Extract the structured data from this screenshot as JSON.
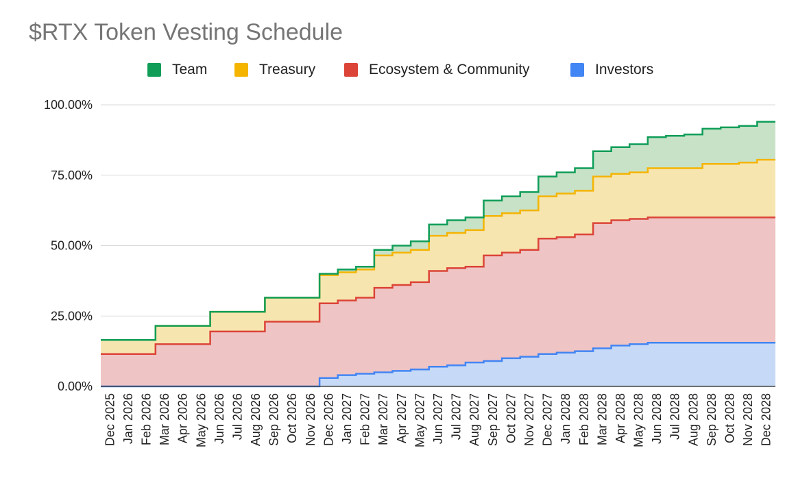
{
  "chart_data": {
    "type": "area",
    "stacked": true,
    "step": true,
    "title": "$RTX Token Vesting Schedule",
    "xlabel": "",
    "ylabel": "",
    "ylim": [
      0,
      100
    ],
    "yticks": [
      0,
      25,
      50,
      75,
      100
    ],
    "ytick_labels": [
      "0.00%",
      "25.00%",
      "50.00%",
      "75.00%",
      "100.00%"
    ],
    "grid": true,
    "legend_position": "top",
    "categories": [
      "Dec 2025",
      "Jan 2026",
      "Feb 2026",
      "Mar 2026",
      "Apr 2026",
      "May 2026",
      "Jun 2026",
      "Jul 2026",
      "Aug 2026",
      "Sep 2026",
      "Oct 2026",
      "Nov 2026",
      "Dec 2026",
      "Jan 2027",
      "Feb 2027",
      "Mar 2027",
      "Apr 2027",
      "May 2027",
      "Jun 2027",
      "Jul 2027",
      "Aug 2027",
      "Sep 2027",
      "Oct 2027",
      "Nov 2027",
      "Dec 2027",
      "Jan 2028",
      "Feb 2028",
      "Mar 2028",
      "Apr 2028",
      "May 2028",
      "Jun 2028",
      "Jul 2028",
      "Aug 2028",
      "Sep 2028",
      "Oct 2028",
      "Nov 2028",
      "Dec 2028"
    ],
    "series": [
      {
        "name": "Investors",
        "color": "#4285f4",
        "fill": "#c6d9f6",
        "values": [
          0,
          0,
          0,
          0,
          0,
          0,
          0,
          0,
          0,
          0,
          0,
          0,
          3,
          4,
          4.5,
          5,
          5.5,
          6,
          7,
          7.5,
          8.5,
          9,
          10,
          10.5,
          11.5,
          12,
          12.5,
          13.5,
          14.5,
          15,
          15.5,
          15.5,
          15.5,
          15.5,
          15.5,
          15.5,
          15.5
        ]
      },
      {
        "name": "Ecosystem & Community",
        "color": "#db4437",
        "fill": "#efc4c4",
        "values": [
          11.5,
          11.5,
          11.5,
          15,
          15,
          15,
          19.5,
          19.5,
          19.5,
          23,
          23,
          23,
          29.5,
          30.5,
          31.5,
          35,
          36,
          37,
          41,
          42,
          42.5,
          46.5,
          47.5,
          48.5,
          52.5,
          53,
          54,
          58,
          59,
          59.5,
          60,
          60,
          60,
          60,
          60,
          60,
          60
        ]
      },
      {
        "name": "Treasury",
        "color": "#f4b400",
        "fill": "#f7e5b0",
        "values": [
          16.5,
          16.5,
          16.5,
          21.5,
          21.5,
          21.5,
          26.5,
          26.5,
          26.5,
          31.5,
          31.5,
          31.5,
          39.5,
          40.5,
          41.5,
          46.5,
          47.5,
          48.5,
          53.5,
          54.5,
          55.5,
          60.5,
          61.5,
          62.5,
          67.5,
          68.5,
          69.5,
          74.5,
          75.5,
          76,
          77.5,
          77.5,
          77.5,
          79,
          79,
          79.5,
          80.5
        ]
      },
      {
        "name": "Team",
        "color": "#0f9d58",
        "fill": "#c8e2c8",
        "values": [
          16.5,
          16.5,
          16.5,
          21.5,
          21.5,
          21.5,
          26.5,
          26.5,
          26.5,
          31.5,
          31.5,
          31.5,
          40,
          41.5,
          42.5,
          48.5,
          50,
          51.5,
          57.5,
          59,
          60,
          66,
          67.5,
          69,
          74.5,
          76,
          77.5,
          83.5,
          85,
          86,
          88.5,
          89,
          89.5,
          91.5,
          92,
          92.5,
          94
        ]
      }
    ]
  },
  "legend": {
    "items": [
      {
        "label": "Team",
        "color": "#0f9d58"
      },
      {
        "label": "Treasury",
        "color": "#f4b400"
      },
      {
        "label": "Ecosystem & Community",
        "color": "#db4437"
      },
      {
        "label": "Investors",
        "color": "#4285f4"
      }
    ]
  }
}
